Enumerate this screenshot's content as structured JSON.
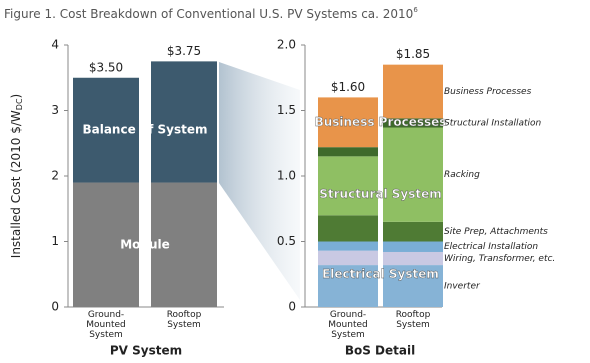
{
  "figure_title": "Figure 1. Cost Breakdown of Conventional U.S. PV Systems ca. 2010",
  "figure_note": "6",
  "chart_data": [
    {
      "type": "stacked_bar",
      "xlabel": "PV System",
      "ylabel": "Installed Cost (2010 $/W",
      "ylabel_sub": "DC",
      "ylabel_end": ")",
      "categories": [
        "Ground-Mounted System",
        "Rooftop System"
      ],
      "ylim": [
        0,
        4
      ],
      "yticks": [
        0,
        1,
        2,
        3,
        4
      ],
      "series": [
        {
          "name": "Module",
          "color": "#808080",
          "values": [
            1.9,
            1.9
          ]
        },
        {
          "name": "Balance of System",
          "color": "#3d5a6e",
          "values": [
            1.6,
            1.85
          ]
        }
      ],
      "totals": {
        "values": [
          3.5,
          3.75
        ],
        "value_labels": [
          "$3.50",
          "$3.75"
        ]
      }
    },
    {
      "type": "stacked_bar",
      "xlabel": "BoS Detail",
      "categories": [
        "Ground-Mounted System",
        "Rooftop System"
      ],
      "ylim": [
        0,
        2
      ],
      "yticks": [
        0,
        0.5,
        {
          "value": 1,
          "label": "1.0"
        },
        1.5,
        {
          "value": 2,
          "label": "2.0"
        }
      ],
      "groups": [
        {
          "name": "Electrical System",
          "series": [
            {
              "name": "Inverter",
              "color": "#86b3d6",
              "values": [
                0.32,
                0.32
              ]
            },
            {
              "name": "Wiring, Transformer, etc.",
              "color": "#c9c9e3",
              "values": [
                0.11,
                0.1
              ]
            },
            {
              "name": "Electrical Installation",
              "color": "#7aaed6",
              "values": [
                0.07,
                0.08
              ]
            }
          ]
        },
        {
          "name": "Structural System",
          "series": [
            {
              "name": "Site Prep, Attachments",
              "color": "#4f7b34",
              "values": [
                0.2,
                0.15
              ]
            },
            {
              "name": "Racking",
              "color": "#8fbf63",
              "values": [
                0.45,
                0.72
              ]
            },
            {
              "name": "Structural Installation",
              "color": "#3e6a2b",
              "values": [
                0.07,
                0.07
              ]
            }
          ]
        },
        {
          "name": "Business Processes",
          "series": [
            {
              "name": "Business Processes",
              "color": "#e8944a",
              "values": [
                0.38,
                0.41
              ]
            }
          ]
        }
      ],
      "totals": {
        "values": [
          1.6,
          1.85
        ],
        "value_labels": [
          "$1.60",
          "$1.85"
        ]
      }
    }
  ]
}
